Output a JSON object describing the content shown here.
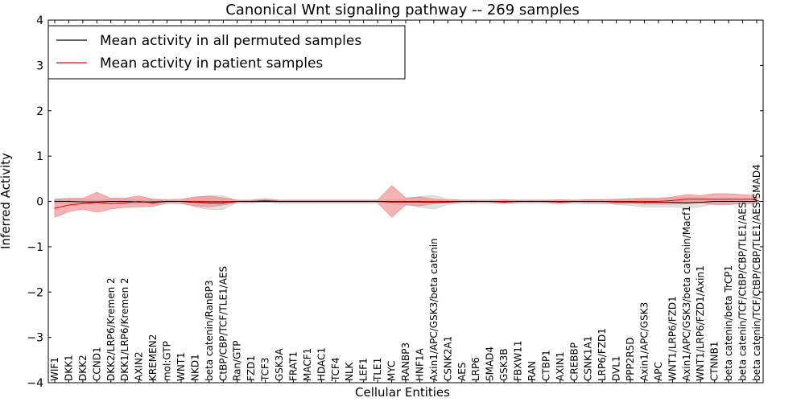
{
  "chart_data": {
    "type": "line",
    "title": "Canonical Wnt signaling pathway -- 269 samples",
    "xlabel": "Cellular Entities",
    "ylabel": "Inferred Activity",
    "ylim": [
      -4,
      4
    ],
    "yticks": [
      -4,
      -3,
      -2,
      -1,
      0,
      1,
      2,
      3,
      4
    ],
    "ytick_labels": [
      "−4",
      "−3",
      "−2",
      "−1",
      "0",
      "1",
      "2",
      "3",
      "4"
    ],
    "grid": false,
    "legend_position": "top-left",
    "categories": [
      "WIF1",
      "DKK1",
      "DKK2",
      "CCND1",
      "DKK2/LRP6/Kremen 2",
      "DKK1/LRP6/Kremen 2",
      "AXIN2",
      "KREMEN2",
      "mol:GTP",
      "WNT1",
      "NKD1",
      "beta catenin/RanBP3",
      "CtBP/CBP/TCF/TLE1/AES",
      "Ran/GTP",
      "FZD1",
      "TCF3",
      "GSK3A",
      "FRAT1",
      "MACF1",
      "HDAC1",
      "TCF4",
      "NLK",
      "LEF1",
      "TLE1",
      "MYC",
      "RANBP3",
      "HNF1A",
      "Axin1/APC/GSK3/beta catenin",
      "CSNK2A1",
      "AES",
      "LRP6",
      "SMAD4",
      "GSK3B",
      "FBXW11",
      "RAN",
      "CTBP1",
      "AXIN1",
      "CREBBP",
      "CSNK1A1",
      "LRP6/FZD1",
      "DVL1",
      "PPP2R5D",
      "Axin1/APC/GSK3",
      "APC",
      "WNT1/LRP6/FZD1",
      "Axin1/APC/GSK3/beta catenin/Macf1",
      "WNT1/LRP6/FZD1/Axin1",
      "CTNNB1",
      "beta catenin/beta TrCP1",
      "beta catenin/TCF/CtBP/CBP/TLE1/AES",
      "beta catenin/TCF/CtBP/CBP/TLE1/AES/SMAD4"
    ],
    "series": [
      {
        "name": "Mean activity in all permuted samples",
        "color": "#000000",
        "band_color": "#c8c8c8",
        "values": [
          0.0,
          0.0,
          -0.01,
          -0.01,
          0.0,
          0.0,
          -0.01,
          -0.01,
          0.0,
          0.0,
          -0.02,
          -0.03,
          -0.03,
          0.0,
          0.0,
          0.0,
          0.0,
          0.0,
          0.0,
          0.0,
          0.0,
          0.0,
          0.0,
          0.0,
          -0.01,
          -0.01,
          -0.01,
          -0.02,
          -0.01,
          0.0,
          0.0,
          0.0,
          -0.01,
          0.0,
          0.0,
          0.0,
          -0.01,
          0.0,
          0.0,
          0.0,
          -0.01,
          -0.01,
          -0.02,
          -0.02,
          -0.02,
          -0.03,
          -0.02,
          0.0,
          0.0,
          0.0,
          0.0
        ],
        "band": [
          0.05,
          0.05,
          0.05,
          0.03,
          0.05,
          0.05,
          0.05,
          0.05,
          0.02,
          0.02,
          0.1,
          0.15,
          0.15,
          0.02,
          0.02,
          0.02,
          0.02,
          0.02,
          0.02,
          0.02,
          0.02,
          0.02,
          0.02,
          0.02,
          0.05,
          0.06,
          0.12,
          0.15,
          0.06,
          0.03,
          0.03,
          0.03,
          0.05,
          0.03,
          0.03,
          0.03,
          0.05,
          0.03,
          0.03,
          0.03,
          0.06,
          0.08,
          0.1,
          0.1,
          0.1,
          0.12,
          0.1,
          0.05,
          0.06,
          0.05,
          0.05
        ]
      },
      {
        "name": "Mean activity in patient samples",
        "color": "#ff0000",
        "band_color": "#f08080",
        "values": [
          -0.15,
          -0.08,
          -0.05,
          -0.02,
          -0.05,
          -0.03,
          0.0,
          -0.03,
          0.0,
          0.0,
          0.0,
          0.0,
          0.0,
          0.0,
          0.0,
          0.02,
          0.0,
          0.0,
          0.0,
          0.0,
          0.0,
          0.0,
          0.0,
          0.0,
          0.0,
          0.0,
          0.0,
          0.0,
          0.0,
          0.0,
          0.0,
          0.0,
          0.0,
          0.0,
          0.0,
          0.0,
          0.0,
          0.0,
          0.0,
          0.0,
          0.0,
          0.0,
          0.0,
          0.0,
          0.02,
          0.05,
          0.05,
          0.05,
          0.05,
          0.05,
          0.05
        ],
        "band": [
          0.2,
          0.15,
          0.12,
          0.22,
          0.12,
          0.1,
          0.12,
          0.08,
          0.04,
          0.05,
          0.1,
          0.12,
          0.08,
          0.03,
          0.03,
          0.04,
          0.03,
          0.03,
          0.03,
          0.03,
          0.03,
          0.03,
          0.03,
          0.03,
          0.35,
          0.08,
          0.1,
          0.05,
          0.03,
          0.03,
          0.03,
          0.03,
          0.03,
          0.03,
          0.03,
          0.03,
          0.03,
          0.03,
          0.04,
          0.04,
          0.05,
          0.05,
          0.06,
          0.06,
          0.08,
          0.1,
          0.08,
          0.12,
          0.12,
          0.1,
          0.08
        ]
      }
    ]
  }
}
